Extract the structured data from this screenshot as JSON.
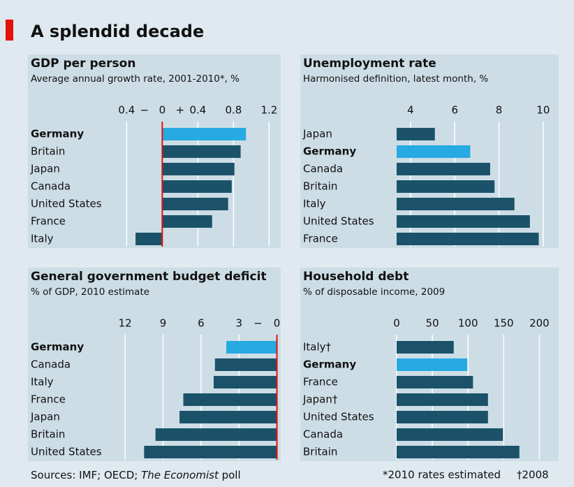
{
  "title": "A splendid decade",
  "chart_data": [
    {
      "type": "hbar",
      "title": "GDP per person",
      "subtitle": "Average annual growth rate, 2001-2010*, %",
      "categories": [
        "Germany",
        "Britain",
        "Japan",
        "Canada",
        "United States",
        "France",
        "Italy"
      ],
      "values": [
        0.94,
        0.88,
        0.81,
        0.78,
        0.74,
        0.56,
        -0.3
      ],
      "colors": [
        "#27a9e1",
        "#1b5269",
        "#1b5269",
        "#1b5269",
        "#1b5269",
        "#1b5269",
        "#1b5269"
      ],
      "highlight_color": "#27a9e1",
      "xlim": [
        -0.63,
        1.33
      ],
      "xticks": [
        {
          "value": -0.4,
          "label": "0.4"
        },
        0,
        0.4,
        0.8,
        1.2
      ],
      "tick_signs": [
        "−",
        "+"
      ],
      "zero_line_color": "#e3120b",
      "grid": true
    },
    {
      "type": "hbar",
      "title": "Unemployment rate",
      "subtitle": "Harmonised definition, latest month, %",
      "categories": [
        "Japan",
        "Germany",
        "Canada",
        "Britain",
        "Italy",
        "United States",
        "France"
      ],
      "values": [
        5.1,
        6.7,
        7.6,
        7.8,
        8.7,
        9.4,
        9.8
      ],
      "colors": [
        "#1b5269",
        "#27a9e1",
        "#1b5269",
        "#1b5269",
        "#1b5269",
        "#1b5269",
        "#1b5269"
      ],
      "highlight_color": "#27a9e1",
      "xlim": [
        3.37,
        10.7
      ],
      "xticks": [
        4,
        6,
        8,
        10
      ],
      "grid": true
    },
    {
      "type": "hbar",
      "title": "General government budget deficit",
      "subtitle": "% of GDP, 2010 estimate",
      "categories": [
        "Germany",
        "Canada",
        "Italy",
        "France",
        "Japan",
        "Britain",
        "United States"
      ],
      "values": [
        4.0,
        4.9,
        5.0,
        7.4,
        7.7,
        9.6,
        10.5
      ],
      "colors": [
        "#27a9e1",
        "#1b5269",
        "#1b5269",
        "#1b5269",
        "#1b5269",
        "#1b5269",
        "#1b5269"
      ],
      "highlight_color": "#27a9e1",
      "xlim": [
        13.5,
        -0.3
      ],
      "xticks": [
        12,
        9,
        6,
        3,
        0
      ],
      "tick_signs": [
        "−"
      ],
      "zero_line_color": "#e3120b",
      "grid": true
    },
    {
      "type": "hbar",
      "title": "Household debt",
      "subtitle": "% of disposable income, 2009",
      "categories": [
        "Italy†",
        "Germany",
        "France",
        "Japan†",
        "United States",
        "Canada",
        "Britain"
      ],
      "values": [
        80,
        99,
        107,
        128,
        128,
        149,
        172
      ],
      "colors": [
        "#1b5269",
        "#27a9e1",
        "#1b5269",
        "#1b5269",
        "#1b5269",
        "#1b5269",
        "#1b5269"
      ],
      "highlight_color": "#27a9e1",
      "xlim": [
        0,
        227
      ],
      "xticks": [
        0,
        50,
        100,
        150,
        200
      ],
      "grid": true
    }
  ],
  "sources": [
    "Sources: IMF; OECD; ",
    "The Economist",
    " poll"
  ],
  "footnotes": [
    "*2010 rates estimated",
    "†2008"
  ]
}
